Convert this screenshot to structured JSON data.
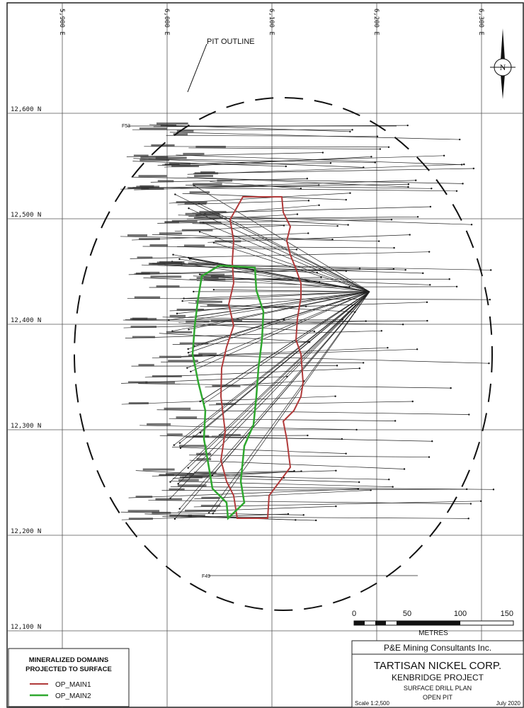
{
  "grid": {
    "eastings": [
      "5,900 E",
      "6,000 E",
      "6,100 E",
      "6,200 E",
      "6,300 E"
    ],
    "northings": [
      "12,600 N",
      "12,500 N",
      "12,400 N",
      "12,300 N",
      "12,200 N",
      "12,100 N"
    ]
  },
  "pit_label": "PIT OUTLINE",
  "north_label": "N",
  "holes": [
    "F53",
    "F49"
  ],
  "scale_bar": {
    "ticks": [
      "0",
      "50",
      "100",
      "150"
    ],
    "unit": "METRES"
  },
  "legend": {
    "title": [
      "MINERALIZED DOMAINS",
      "PROJECTED TO SURFACE"
    ],
    "items": [
      "OP_MAIN1",
      "OP_MAIN2"
    ]
  },
  "title_block": {
    "consultant": "P&E Mining Consultants Inc.",
    "client": "TARTISAN NICKEL CORP.",
    "project": "KENBRIDGE PROJECT",
    "drawing": "SURFACE DRILL PLAN",
    "subtitle": "OPEN PIT",
    "scale": "Scale 1:2,500",
    "date": "July 2020"
  }
}
